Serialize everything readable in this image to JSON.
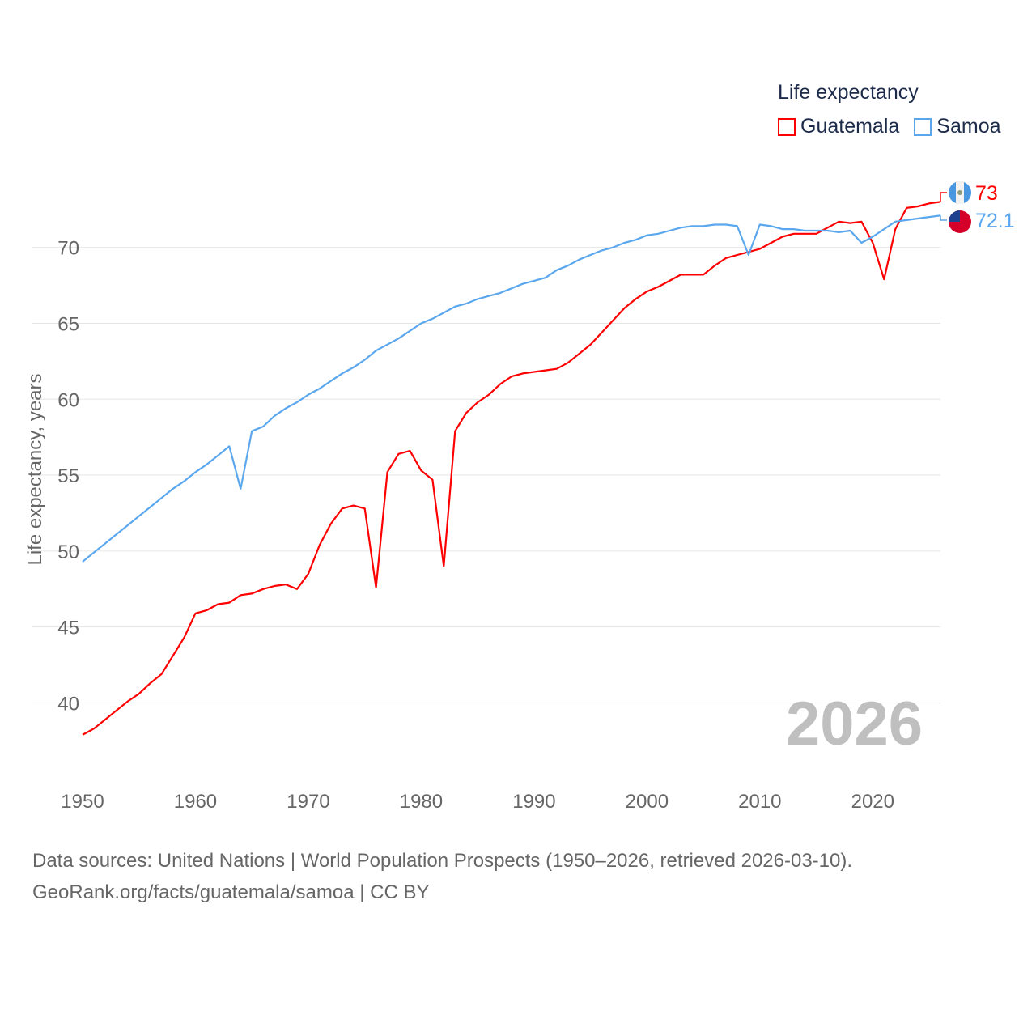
{
  "legend": {
    "title": "Life expectancy"
  },
  "footer": {
    "line1": "Data sources: United Nations | World Population Prospects (1950–2026, retrieved 2026-03-10).",
    "line2": "GeoRank.org/facts/guatemala/samoa | CC BY"
  },
  "watermark_year": "2026",
  "colors": {
    "guatemala": "#ff0000",
    "samoa": "#5aa7ee",
    "grid": "#e6e6e6",
    "axis_text": "#666666"
  },
  "chart_data": {
    "type": "line",
    "title": "Life expectancy",
    "xlabel": "",
    "ylabel": "Life expectancy, years",
    "xlim": [
      1950,
      2026
    ],
    "ylim": [
      35.6,
      73.5
    ],
    "xticks": [
      1950,
      1960,
      1970,
      1980,
      1990,
      2000,
      2010,
      2020
    ],
    "yticks": [
      40,
      45,
      50,
      55,
      60,
      65,
      70
    ],
    "grid": true,
    "legend_position": "top-right",
    "x_start": 1950,
    "series": [
      {
        "name": "Guatemala",
        "key": "guatemala",
        "end_label": "73",
        "flag": "guatemala-flag",
        "values": [
          37.9,
          38.3,
          38.9,
          39.5,
          40.1,
          40.6,
          41.3,
          41.9,
          43.1,
          44.3,
          45.9,
          46.1,
          46.5,
          46.6,
          47.1,
          47.2,
          47.5,
          47.7,
          47.8,
          47.5,
          48.5,
          50.4,
          51.8,
          52.8,
          53.0,
          52.8,
          47.6,
          55.2,
          56.4,
          56.6,
          55.3,
          54.7,
          49.0,
          57.9,
          59.1,
          59.8,
          60.3,
          61.0,
          61.5,
          61.7,
          61.8,
          61.9,
          62.0,
          62.4,
          63.0,
          63.6,
          64.4,
          65.2,
          66.0,
          66.6,
          67.1,
          67.4,
          67.8,
          68.2,
          68.2,
          68.2,
          68.8,
          69.3,
          69.5,
          69.7,
          69.9,
          70.3,
          70.7,
          70.9,
          70.9,
          70.9,
          71.3,
          71.7,
          71.6,
          71.7,
          70.3,
          67.9,
          71.2,
          72.6,
          72.7,
          72.9,
          73.0
        ]
      },
      {
        "name": "Samoa",
        "key": "samoa",
        "end_label": "72.1",
        "flag": "samoa-flag",
        "values": [
          49.3,
          49.9,
          50.5,
          51.1,
          51.7,
          52.3,
          52.9,
          53.5,
          54.1,
          54.6,
          55.2,
          55.7,
          56.3,
          56.9,
          54.1,
          57.9,
          58.2,
          58.9,
          59.4,
          59.8,
          60.3,
          60.7,
          61.2,
          61.7,
          62.1,
          62.6,
          63.2,
          63.6,
          64.0,
          64.5,
          65.0,
          65.3,
          65.7,
          66.1,
          66.3,
          66.6,
          66.8,
          67.0,
          67.3,
          67.6,
          67.8,
          68.0,
          68.5,
          68.8,
          69.2,
          69.5,
          69.8,
          70.0,
          70.3,
          70.5,
          70.8,
          70.9,
          71.1,
          71.3,
          71.4,
          71.4,
          71.5,
          71.5,
          71.4,
          69.5,
          71.5,
          71.4,
          71.2,
          71.2,
          71.1,
          71.1,
          71.1,
          71.0,
          71.1,
          70.3,
          70.7,
          71.2,
          71.7,
          71.8,
          71.9,
          72.0,
          72.1
        ]
      }
    ]
  }
}
